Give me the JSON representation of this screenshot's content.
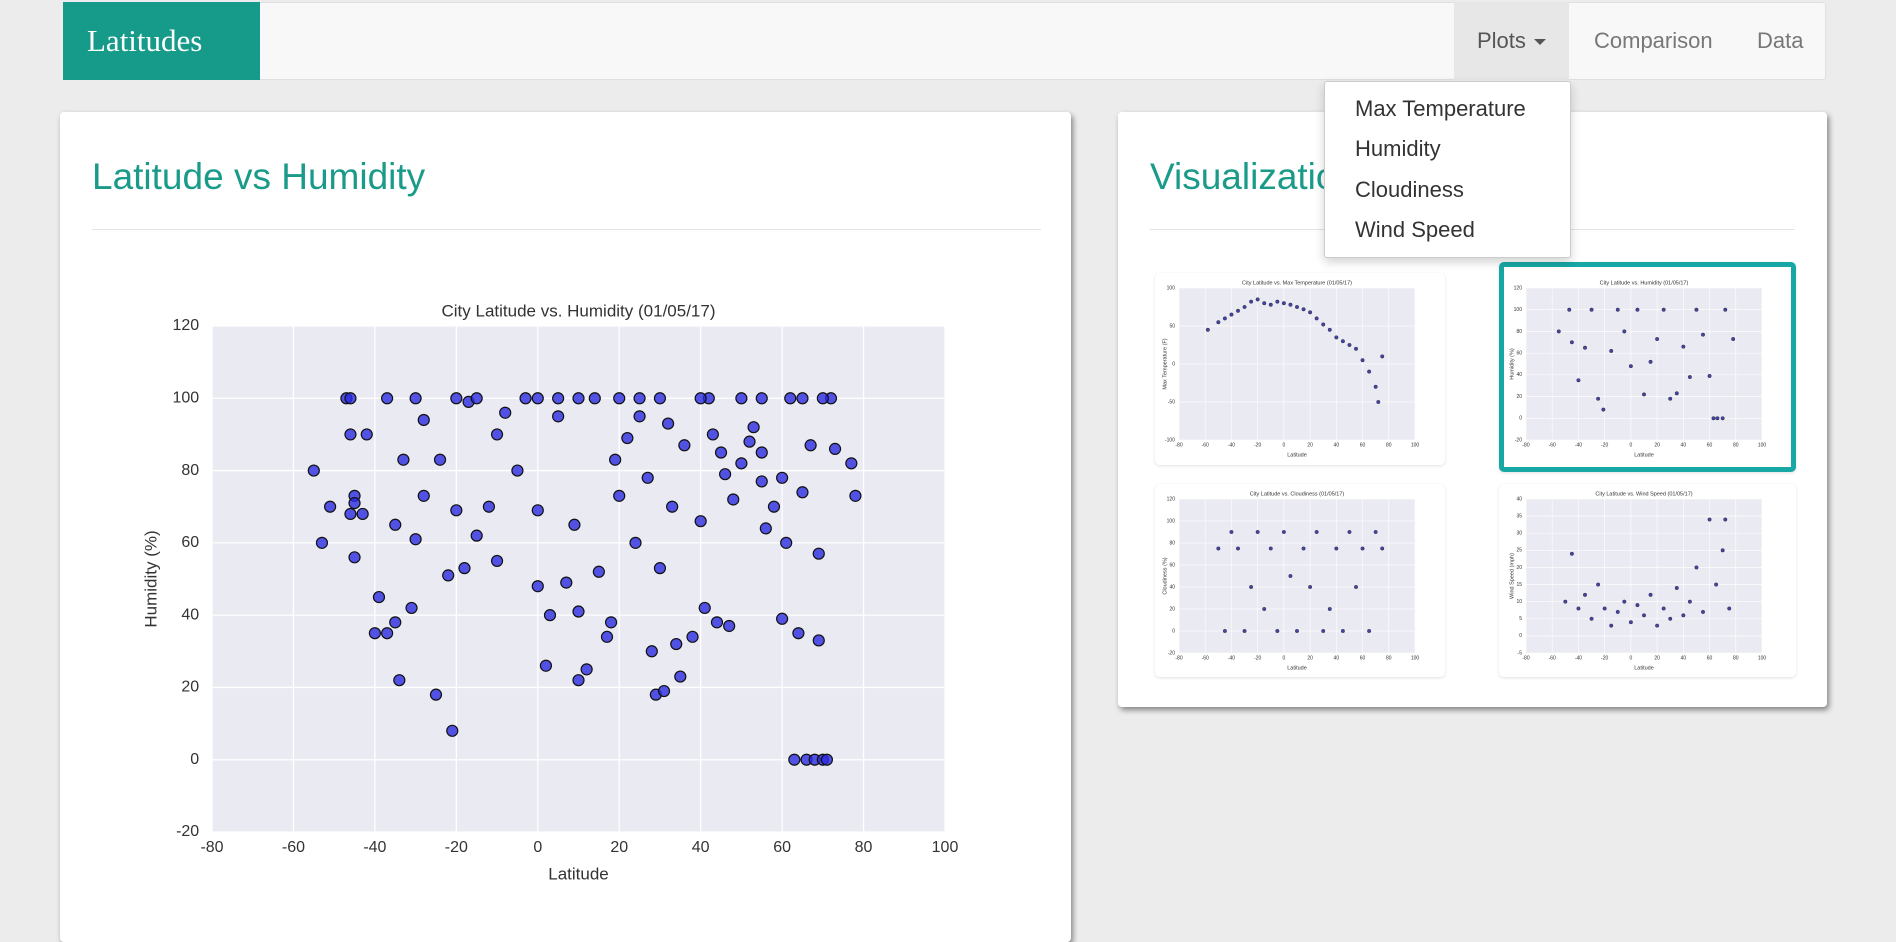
{
  "navbar": {
    "brand": "Latitudes",
    "items": [
      "Plots",
      "Comparison",
      "Data"
    ],
    "dropdown": [
      "Max Temperature",
      "Humidity",
      "Cloudiness",
      "Wind Speed"
    ]
  },
  "panels": [
    {
      "title": "Latitude vs Humidity"
    },
    {
      "title": "Visualizations"
    }
  ],
  "chart_data": [
    {
      "type": "scatter",
      "title": "City Latitude vs. Humidity (01/05/17)",
      "x_label": "Latitude",
      "y_label": "Humidity (%)",
      "color": "#2a2ae0",
      "grid": true,
      "xlim": [
        -80,
        100
      ],
      "ylim": [
        -20,
        120
      ],
      "xticks": [
        -80,
        -60,
        -40,
        -20,
        0,
        20,
        40,
        60,
        80,
        100
      ],
      "yticks": [
        -20,
        0,
        20,
        40,
        60,
        80,
        100,
        120
      ],
      "x": [
        -55,
        -53,
        -51,
        -47,
        -46,
        -46,
        -45,
        -45,
        -46,
        -45,
        -43,
        -42,
        -40,
        -39,
        -37,
        -37,
        -35,
        -35,
        -34,
        -33,
        -31,
        -30,
        -28,
        -28,
        -25,
        -24,
        -22,
        -21,
        -20,
        -18,
        -17,
        -15,
        -12,
        -10,
        -8,
        -5,
        -3,
        0,
        0,
        2,
        3,
        5,
        7,
        9,
        10,
        10,
        12,
        14,
        15,
        17,
        18,
        19,
        20,
        22,
        24,
        25,
        27,
        28,
        29,
        30,
        31,
        32,
        33,
        34,
        35,
        36,
        38,
        40,
        41,
        42,
        43,
        44,
        46,
        47,
        48,
        50,
        52,
        53,
        55,
        56,
        58,
        60,
        61,
        62,
        63,
        64,
        65,
        66,
        67,
        68,
        69,
        69,
        70,
        71,
        72,
        73,
        77,
        78,
        -30,
        -20,
        -15,
        0,
        10,
        20,
        30,
        40,
        55,
        65,
        70,
        -10,
        5,
        25,
        45,
        50,
        55,
        60
      ],
      "values": [
        80,
        60,
        70,
        100,
        100,
        90,
        73,
        71,
        68,
        56,
        68,
        90,
        35,
        45,
        35,
        100,
        38,
        65,
        22,
        83,
        42,
        61,
        73,
        94,
        18,
        83,
        51,
        8,
        69,
        53,
        99,
        62,
        70,
        55,
        96,
        80,
        100,
        69,
        48,
        26,
        40,
        100,
        49,
        65,
        22,
        41,
        25,
        100,
        52,
        34,
        38,
        83,
        73,
        89,
        60,
        100,
        78,
        30,
        18,
        53,
        19,
        93,
        70,
        32,
        23,
        87,
        34,
        66,
        42,
        100,
        90,
        38,
        79,
        37,
        72,
        100,
        88,
        92,
        77,
        64,
        70,
        39,
        60,
        100,
        0,
        35,
        74,
        0,
        87,
        0,
        57,
        33,
        0,
        0,
        100,
        86,
        82,
        73,
        100,
        100,
        100,
        100,
        100,
        100,
        100,
        100,
        100,
        100,
        100,
        90,
        95,
        95,
        85,
        82,
        85,
        78
      ]
    },
    {
      "type": "scatter",
      "title": "City Latitude vs. Max Temperature (01/05/17)",
      "x_label": "Latitude",
      "y_label": "Max Temperature (F)",
      "color": "#1a1a8c",
      "grid": true,
      "xlim": [
        -80,
        100
      ],
      "ylim": [
        -100,
        100
      ],
      "xticks": [
        -80,
        -60,
        -40,
        -20,
        0,
        20,
        40,
        60,
        80,
        100
      ],
      "yticks": [
        -100,
        -50,
        0,
        50,
        100
      ],
      "x": [
        -58,
        -50,
        -45,
        -40,
        -35,
        -30,
        -25,
        -20,
        -15,
        -10,
        -5,
        0,
        5,
        10,
        15,
        20,
        25,
        30,
        35,
        40,
        45,
        50,
        55,
        60,
        65,
        70,
        72,
        75
      ],
      "values": [
        45,
        55,
        60,
        65,
        70,
        75,
        82,
        85,
        80,
        78,
        82,
        80,
        78,
        75,
        72,
        68,
        60,
        52,
        45,
        35,
        30,
        25,
        20,
        5,
        -10,
        -30,
        -50,
        10
      ]
    },
    {
      "type": "scatter",
      "title": "City Latitude vs. Humidity (01/05/17)",
      "x_label": "Latitude",
      "y_label": "Humidity (%)",
      "color": "#1a1a8c",
      "grid": true,
      "xlim": [
        -80,
        100
      ],
      "ylim": [
        -20,
        120
      ],
      "xticks": [
        -80,
        -60,
        -40,
        -20,
        0,
        20,
        40,
        60,
        80,
        100
      ],
      "yticks": [
        -20,
        0,
        20,
        40,
        60,
        80,
        100,
        120
      ],
      "x": [
        -55,
        -47,
        -45,
        -40,
        -35,
        -30,
        -25,
        -21,
        -15,
        -10,
        -5,
        0,
        5,
        10,
        15,
        20,
        25,
        30,
        35,
        40,
        45,
        50,
        55,
        60,
        63,
        66,
        70,
        72,
        78
      ],
      "values": [
        80,
        100,
        70,
        35,
        65,
        100,
        18,
        8,
        62,
        100,
        80,
        48,
        100,
        22,
        52,
        73,
        100,
        18,
        23,
        66,
        38,
        100,
        77,
        39,
        0,
        0,
        0,
        100,
        73
      ]
    },
    {
      "type": "scatter",
      "title": "City Latitude vs. Cloudiness (01/05/17)",
      "x_label": "Latitude",
      "y_label": "Cloudiness (%)",
      "color": "#1a1a8c",
      "grid": true,
      "xlim": [
        -80,
        100
      ],
      "ylim": [
        -20,
        120
      ],
      "xticks": [
        -80,
        -60,
        -40,
        -20,
        0,
        20,
        40,
        60,
        80,
        100
      ],
      "yticks": [
        -20,
        0,
        20,
        40,
        60,
        80,
        100,
        120
      ],
      "x": [
        -50,
        -45,
        -40,
        -35,
        -30,
        -25,
        -20,
        -15,
        -10,
        -5,
        0,
        5,
        10,
        15,
        20,
        25,
        30,
        35,
        40,
        45,
        50,
        55,
        60,
        65,
        70,
        75
      ],
      "values": [
        75,
        0,
        90,
        75,
        0,
        40,
        90,
        20,
        75,
        0,
        90,
        50,
        0,
        75,
        40,
        90,
        0,
        20,
        75,
        0,
        90,
        40,
        75,
        0,
        90,
        75
      ]
    },
    {
      "type": "scatter",
      "title": "City Latitude vs. Wind Speed (01/05/17)",
      "x_label": "Latitude",
      "y_label": "Wind Speed (mph)",
      "color": "#1a1a8c",
      "grid": true,
      "xlim": [
        -80,
        100
      ],
      "ylim": [
        -5,
        40
      ],
      "xticks": [
        -80,
        -60,
        -40,
        -20,
        0,
        20,
        40,
        60,
        80,
        100
      ],
      "yticks": [
        -5,
        0,
        5,
        10,
        15,
        20,
        25,
        30,
        35,
        40
      ],
      "x": [
        -50,
        -45,
        -40,
        -35,
        -30,
        -25,
        -20,
        -15,
        -10,
        -5,
        0,
        5,
        10,
        15,
        20,
        25,
        30,
        35,
        40,
        45,
        50,
        55,
        60,
        65,
        70,
        72,
        75
      ],
      "values": [
        10,
        24,
        8,
        12,
        5,
        15,
        8,
        3,
        7,
        10,
        4,
        9,
        6,
        12,
        3,
        8,
        5,
        14,
        6,
        10,
        20,
        7,
        34,
        15,
        25,
        34,
        8
      ]
    }
  ]
}
